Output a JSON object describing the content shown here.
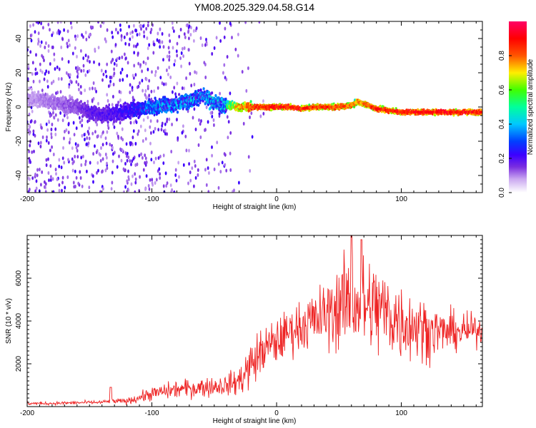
{
  "chart_data": [
    {
      "type": "heatmap",
      "title": "YM08.2025.329.04.58.G14",
      "xlabel": "Height of straight line (km)",
      "ylabel": "Frequency (Hz)",
      "xlim": [
        -200,
        165
      ],
      "ylim": [
        -50,
        50
      ],
      "xticks": [
        -200,
        -100,
        0,
        100
      ],
      "yticks": [
        -40,
        -20,
        0,
        20,
        40
      ],
      "colorbar": {
        "label": "Normalized spectral amplitude",
        "range": [
          0,
          1
        ],
        "ticks": [
          "0.0",
          "0.2",
          "0.4",
          "0.6",
          "0.8"
        ],
        "colors": [
          "#ffffff",
          "#c9a6f0",
          "#7a2ee0",
          "#3c00ff",
          "#0040ff",
          "#00c8ff",
          "#00ff9c",
          "#40ff00",
          "#ffee00",
          "#ff5500",
          "#ff0000",
          "#ff0066"
        ]
      },
      "ridge": {
        "x": [
          -200,
          -180,
          -160,
          -150,
          -140,
          -130,
          -120,
          -110,
          -100,
          -90,
          -80,
          -70,
          -60,
          -55,
          -50,
          -40,
          -30,
          -20,
          -10,
          0,
          10,
          20,
          30,
          40,
          50,
          60,
          65,
          70,
          80,
          90,
          100,
          110,
          120,
          130,
          140,
          150,
          165
        ],
        "freq": [
          5,
          3,
          0,
          -3,
          -5,
          -4,
          -2,
          -1,
          0,
          1,
          2,
          4,
          6,
          5,
          2,
          1,
          0,
          0,
          0,
          0,
          0,
          -1,
          0,
          0,
          0,
          1,
          3,
          2,
          -1,
          -2,
          -3,
          -3,
          -3,
          -3,
          -3,
          -3,
          -3
        ],
        "amplitude": [
          0.1,
          0.12,
          0.15,
          0.2,
          0.2,
          0.22,
          0.25,
          0.3,
          0.4,
          0.45,
          0.5,
          0.5,
          0.5,
          0.5,
          0.5,
          0.6,
          0.8,
          0.9,
          0.95,
          0.95,
          0.95,
          0.95,
          0.9,
          0.9,
          0.9,
          0.85,
          0.8,
          0.85,
          0.95,
          0.95,
          0.95,
          0.95,
          0.95,
          0.95,
          0.95,
          0.95,
          0.95
        ]
      }
    },
    {
      "type": "line",
      "xlabel": "Height of straight line (km)",
      "ylabel": "SNR (10 * v/v)",
      "xlim": [
        -200,
        165
      ],
      "ylim": [
        0,
        8000
      ],
      "xticks": [
        -200,
        -100,
        0,
        100
      ],
      "yticks": [
        2000,
        4000,
        6000
      ],
      "color": "#ee2222",
      "series": [
        {
          "name": "SNR",
          "x": [
            -200,
            -180,
            -160,
            -140,
            -133,
            -120,
            -100,
            -80,
            -60,
            -40,
            -30,
            -20,
            -10,
            0,
            10,
            20,
            30,
            40,
            50,
            60,
            70,
            80,
            90,
            100,
            110,
            120,
            130,
            140,
            150,
            165
          ],
          "mean": [
            150,
            150,
            180,
            200,
            250,
            250,
            600,
            800,
            900,
            1000,
            1200,
            2000,
            2700,
            3000,
            3500,
            3800,
            4000,
            4300,
            4700,
            5000,
            4700,
            4600,
            4300,
            4000,
            3800,
            3600,
            3500,
            3500,
            3500,
            3600
          ],
          "spread": [
            80,
            80,
            90,
            100,
            120,
            150,
            350,
            450,
            500,
            500,
            800,
            1200,
            1200,
            1200,
            1100,
            1300,
            1500,
            1700,
            2200,
            2600,
            2500,
            2500,
            2300,
            2000,
            1800,
            1500,
            1200,
            1000,
            900,
            700
          ],
          "peaks": [
            {
              "x": -133,
              "value": 900
            },
            {
              "x": 60,
              "value": 8000
            },
            {
              "x": 68,
              "value": 7800
            }
          ]
        }
      ]
    }
  ]
}
